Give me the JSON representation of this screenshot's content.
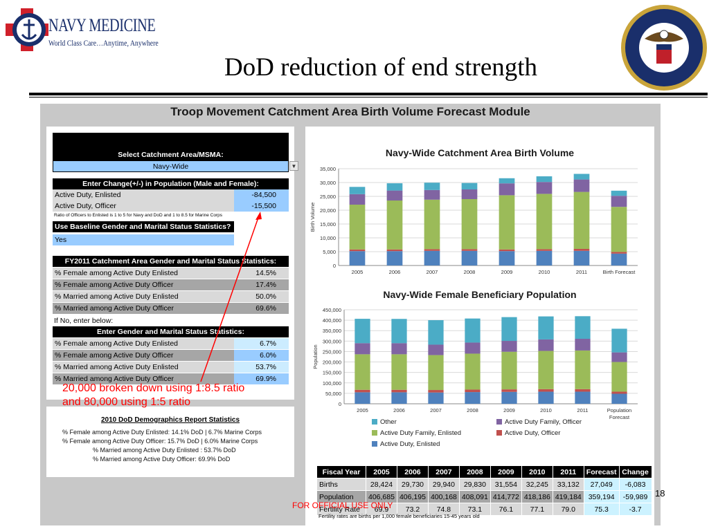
{
  "header": {
    "org_name": "NAVY MEDICINE",
    "org_tagline": "World Class Care…Anytime, Anywhere",
    "slide_title": "DoD reduction of end strength"
  },
  "module": {
    "title": "Troop Movement Catchment Area Birth Volume Forecast Module",
    "select_label": "Select Catchment Area/MSMA:",
    "select_value": "Navy-Wide",
    "change_header": "Enter Change(+/-) in Population (Male and Female):",
    "change_rows": [
      {
        "label": "Active Duty, Enlisted",
        "value": "-84,500"
      },
      {
        "label": "Active Duty, Officer",
        "value": "-15,500"
      }
    ],
    "ratio_note": "Ratio of Officers to Enlisted is 1 to 5 for Navy and DoD and 1 to 8.5 for Marine Corps",
    "baseline_question": "Use Baseline Gender and Marital Status Statistics?",
    "baseline_answer": "Yes",
    "fy_header": "FY2011 Catchment Area Gender and Marital Status Statistics:",
    "fy_rows": [
      {
        "label": "% Female among Active Duty Enlisted",
        "value": "14.5%"
      },
      {
        "label": "% Female among Active Duty Officer",
        "value": "17.4%"
      },
      {
        "label": "% Married among Active Duty Enlisted",
        "value": "50.0%"
      },
      {
        "label": "% Married among Active Duty Officer",
        "value": "69.6%"
      }
    ],
    "if_no": "If No, enter below:",
    "enter_header": "Enter Gender and Marital Status Statistics:",
    "enter_rows": [
      {
        "label": "% Female among Active Duty Enlisted",
        "value": "6.7%"
      },
      {
        "label": "% Female among Active Duty Officer",
        "value": "6.0%"
      },
      {
        "label": "% Married among Active Duty Enlisted",
        "value": "53.7%"
      },
      {
        "label": "% Married among Active Duty Officer",
        "value": "69.9%"
      }
    ],
    "annotation_line1": "20,000 broken down using 1:8.5 ratio",
    "annotation_line2": "and 80,000 using 1:5 ratio"
  },
  "demographics": {
    "title": "2010 DoD Demographics Report Statistics",
    "lines": [
      "% Female among Active Duty Enlisted:  14.1% DoD | 6.7% Marine Corps",
      "% Female among Active Duty Officer:   15.7% DoD | 6.0% Marine Corps",
      "% Married among Active Duty Enlisted : 53.7% DoD",
      "% Married among Active Duty Officer:   69.9% DoD"
    ]
  },
  "chart_data": [
    {
      "type": "bar",
      "stacked": true,
      "title": "Navy-Wide  Catchment Area Birth Volume",
      "ylabel": "Birth Volume",
      "ylim": [
        0,
        35000
      ],
      "yticks": [
        "0",
        "5,000",
        "10,000",
        "15,000",
        "20,000",
        "25,000",
        "30,000",
        "35,000"
      ],
      "categories": [
        "2005",
        "2006",
        "2007",
        "2008",
        "2009",
        "2010",
        "2011",
        "Birth Forecast"
      ],
      "colors": [
        "#4f81bd",
        "#c0504d",
        "#9bbb59",
        "#8064a2",
        "#4bacc6"
      ],
      "series": [
        {
          "values": [
            5200,
            5200,
            5300,
            5300,
            5200,
            5300,
            5300,
            4300
          ]
        },
        {
          "values": [
            600,
            600,
            600,
            600,
            600,
            600,
            700,
            600
          ]
        },
        {
          "values": [
            16200,
            17700,
            17900,
            18100,
            19600,
            20000,
            20600,
            16300
          ]
        },
        {
          "values": [
            3800,
            3600,
            3500,
            3500,
            4300,
            4300,
            4500,
            4000
          ]
        },
        {
          "values": [
            2624,
            2630,
            2640,
            2330,
            1854,
            2045,
            2032,
            1849
          ]
        }
      ],
      "totals": [
        28424,
        29730,
        29940,
        29830,
        31554,
        32245,
        33132,
        27049
      ]
    },
    {
      "type": "bar",
      "stacked": true,
      "title": "Navy-Wide  Female Beneficiary Population",
      "ylabel": "Population",
      "ylim": [
        0,
        450000
      ],
      "yticks": [
        "0",
        "50,000",
        "100,000",
        "150,000",
        "200,000",
        "250,000",
        "300,000",
        "350,000",
        "400,000",
        "450,000"
      ],
      "categories": [
        "2005",
        "2006",
        "2007",
        "2008",
        "2009",
        "2010",
        "2011",
        "Population Forecast"
      ],
      "colors": [
        "#4f81bd",
        "#c0504d",
        "#9bbb59",
        "#8064a2",
        "#4bacc6"
      ],
      "series": [
        {
          "name": "Active Duty, Enlisted",
          "values": [
            55000,
            55000,
            54000,
            56000,
            57000,
            58000,
            58000,
            48000
          ]
        },
        {
          "name": "Active Duty, Officer",
          "values": [
            12000,
            12000,
            12000,
            12000,
            12000,
            12000,
            12000,
            10000
          ]
        },
        {
          "name": "Active Duty Family, Enlisted",
          "values": [
            170000,
            170000,
            167000,
            172000,
            180000,
            183000,
            185000,
            142000
          ]
        },
        {
          "name": "Active Duty Family, Officer",
          "values": [
            53000,
            53000,
            50000,
            53000,
            52000,
            55000,
            56000,
            46000
          ]
        },
        {
          "name": "Other",
          "values": [
            116685,
            116195,
            117168,
            115091,
            113772,
            110186,
            108184,
            113194
          ]
        }
      ],
      "legend": [
        "Other",
        "Active Duty Family, Officer",
        "Active Duty Family, Enlisted",
        "Active Duty, Officer",
        "Active Duty, Enlisted"
      ]
    },
    {
      "type": "table",
      "columns": [
        "Fiscal Year",
        "2005",
        "2006",
        "2007",
        "2008",
        "2009",
        "2010",
        "2011",
        "Forecast",
        "Change"
      ],
      "rows": [
        [
          "Births",
          "28,424",
          "29,730",
          "29,940",
          "29,830",
          "31,554",
          "32,245",
          "33,132",
          "27,049",
          "-6,083"
        ],
        [
          "Population",
          "406,685",
          "406,195",
          "400,168",
          "408,091",
          "414,772",
          "418,186",
          "419,184",
          "359,194",
          "-59,989"
        ],
        [
          "Fertility Rate",
          "69.9",
          "73.2",
          "74.8",
          "73.1",
          "76.1",
          "77.1",
          "79.0",
          "75.3",
          "-3.7"
        ]
      ],
      "note": "Fertility rates are births per 1,000 female beneficiaries 15-45 years old"
    }
  ],
  "footer": {
    "official": "FOR OFFICIAL USE ONLY",
    "page_number": "18"
  }
}
